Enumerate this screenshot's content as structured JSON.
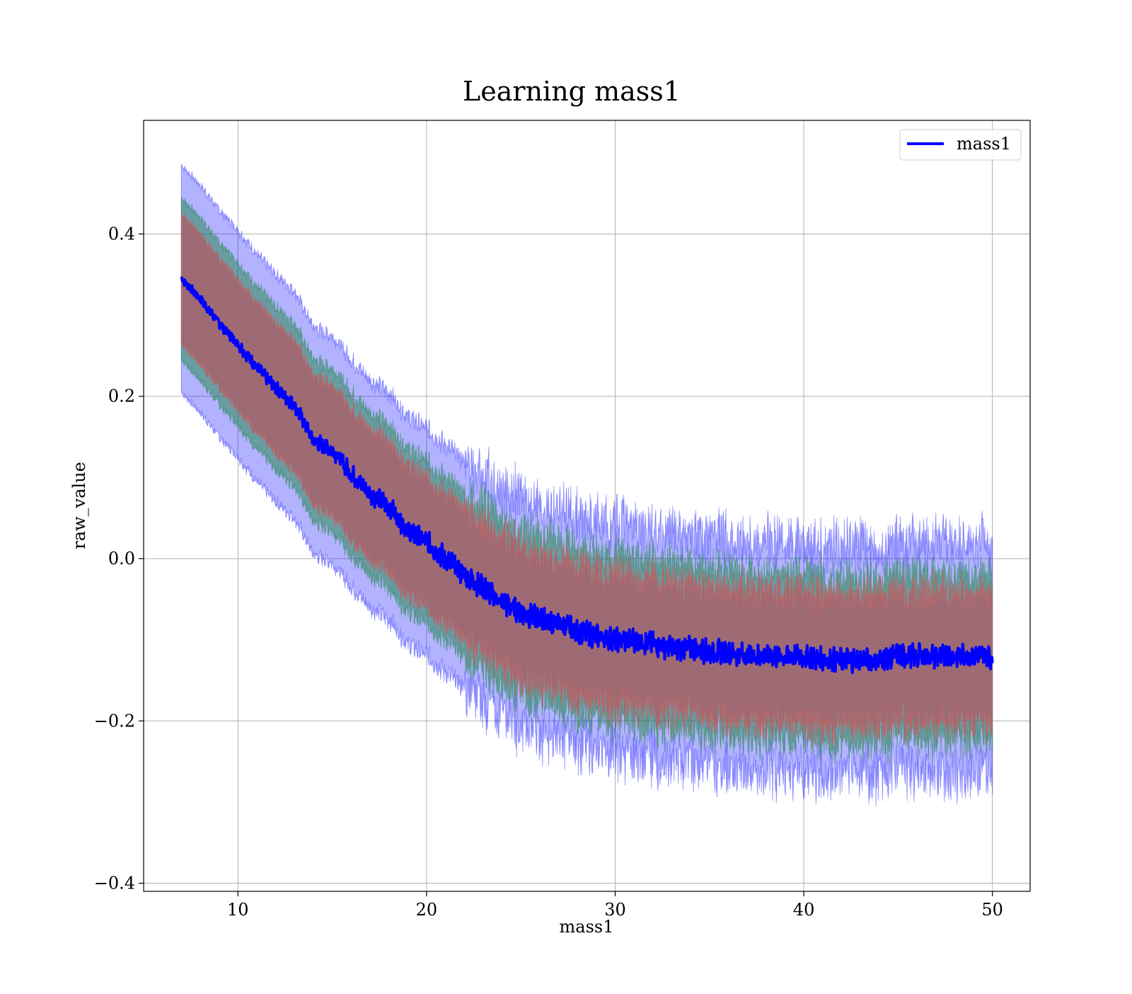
{
  "chart_data": {
    "type": "line",
    "title": "Learning mass1",
    "xlabel": "mass1",
    "ylabel": "raw_value",
    "xlim": [
      5,
      52
    ],
    "ylim": [
      -0.41,
      0.54
    ],
    "xticks": [
      10,
      20,
      30,
      40,
      50
    ],
    "yticks": [
      -0.4,
      -0.2,
      0.0,
      0.2,
      0.4
    ],
    "ytick_labels": [
      "−0.4",
      "−0.2",
      "0.0",
      "0.2",
      "0.4"
    ],
    "grid": true,
    "legend": {
      "placement": "top-right",
      "entries": [
        "mass1"
      ]
    },
    "series": [
      {
        "name": "mass1",
        "color": "#0000ff",
        "x": [
          7,
          8,
          9,
          10,
          11,
          12,
          13,
          14,
          15,
          16,
          17,
          18,
          19,
          20,
          21,
          22,
          23,
          24,
          25,
          26,
          27,
          28,
          29,
          30,
          31,
          32,
          33,
          34,
          35,
          36,
          37,
          38,
          39,
          40,
          41,
          42,
          43,
          44,
          45,
          46,
          47,
          48,
          49,
          50
        ],
        "mean": [
          0.345,
          0.32,
          0.29,
          0.265,
          0.235,
          0.21,
          0.19,
          0.145,
          0.135,
          0.105,
          0.08,
          0.065,
          0.035,
          0.02,
          0.0,
          -0.02,
          -0.035,
          -0.055,
          -0.065,
          -0.075,
          -0.08,
          -0.09,
          -0.095,
          -0.1,
          -0.1,
          -0.105,
          -0.11,
          -0.11,
          -0.115,
          -0.115,
          -0.12,
          -0.12,
          -0.12,
          -0.12,
          -0.125,
          -0.125,
          -0.125,
          -0.125,
          -0.12,
          -0.12,
          -0.12,
          -0.12,
          -0.12,
          -0.12
        ],
        "band_inner": 0.08,
        "band_mid": 0.1,
        "band_outer": 0.14
      }
    ],
    "band_colors": {
      "outer": "#0000ff",
      "mid": "#2e8b57",
      "inner": "#cd5c5c",
      "overlap": "#9e6b74"
    }
  }
}
